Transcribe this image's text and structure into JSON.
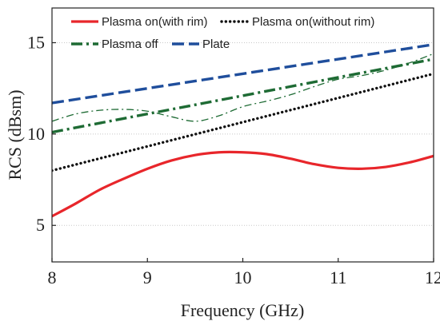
{
  "chart_data": {
    "type": "line",
    "xlabel": "Frequency (GHz)",
    "ylabel": "RCS (dBsm)",
    "xlim": [
      8,
      12
    ],
    "ylim": [
      3,
      16.9
    ],
    "xticks": [
      8,
      9,
      10,
      11,
      12
    ],
    "yticks": [
      5,
      10,
      15
    ],
    "grid": "horizontal dotted at y ticks",
    "legend": {
      "placement": "top",
      "columns": 2
    },
    "series": [
      {
        "name": "Plasma on(with rim)",
        "color": "#e8262b",
        "style": "solid",
        "x": [
          8,
          8.25,
          8.5,
          8.75,
          9,
          9.25,
          9.5,
          9.75,
          10,
          10.25,
          10.5,
          10.75,
          11,
          11.25,
          11.5,
          11.75,
          12
        ],
        "y": [
          5.5,
          6.2,
          6.95,
          7.55,
          8.1,
          8.55,
          8.85,
          9.0,
          9.0,
          8.9,
          8.65,
          8.35,
          8.15,
          8.1,
          8.2,
          8.45,
          8.8
        ]
      },
      {
        "name": "Plasma on(without rim)",
        "color": "#111111",
        "style": "dotted",
        "x": [
          8,
          12
        ],
        "y": [
          8.0,
          13.3
        ]
      },
      {
        "name": "Plasma off",
        "color": "#1e6b34",
        "style": "dashdot",
        "x": [
          8,
          12
        ],
        "y": [
          10.1,
          14.1
        ]
      },
      {
        "name": "",
        "color": "#1e6b34",
        "style": "dashdot-thin",
        "x": [
          8,
          8.25,
          8.5,
          8.75,
          9,
          9.25,
          9.5,
          9.75,
          10,
          10.25,
          10.5,
          10.75,
          11,
          11.25,
          11.5,
          11.75,
          12
        ],
        "y": [
          10.7,
          11.1,
          11.3,
          11.35,
          11.25,
          10.95,
          10.7,
          11.0,
          11.5,
          11.8,
          12.15,
          12.6,
          13.0,
          13.2,
          13.5,
          13.9,
          14.4
        ]
      },
      {
        "name": "Plate",
        "color": "#1f4e9c",
        "style": "dashed",
        "x": [
          8,
          12
        ],
        "y": [
          11.7,
          14.9
        ]
      }
    ]
  }
}
